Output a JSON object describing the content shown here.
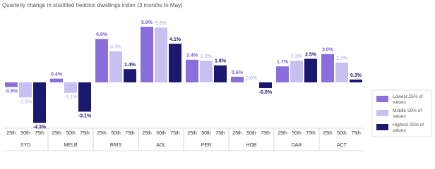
{
  "chart_data": {
    "type": "bar",
    "title": "Quarterly change in stratified hedonic dwellings index (3 months to May)",
    "categories": [
      "SYD",
      "MELB",
      "BRIS",
      "ADL",
      "PER",
      "HOB",
      "DAR",
      "ACT"
    ],
    "subcategories": [
      "25th",
      "50th",
      "75th"
    ],
    "series": [
      {
        "name": "Lowest 25% of values",
        "color": "#8a6fdc",
        "values": [
          -0.5,
          0.4,
          4.6,
          5.9,
          2.4,
          0.6,
          1.7,
          3.0
        ],
        "value_labels": [
          "-0.5%",
          "0.4%",
          "4.6%",
          "5.9%",
          "2.4%",
          "0.6%",
          "1.7%",
          "3.0%"
        ]
      },
      {
        "name": "Middle 50% of values",
        "color": "#c6c1f0",
        "values": [
          -1.6,
          -1.1,
          3.3,
          5.8,
          2.3,
          0.0,
          2.3,
          2.1
        ],
        "value_labels": [
          "-1.6%",
          "-1.1%",
          "3.3%",
          "5.8%",
          "2.3%",
          "0.0%",
          "2.3%",
          "2.1%"
        ]
      },
      {
        "name": "Highest 25% of values",
        "color": "#1d186f",
        "values": [
          -4.3,
          -3.1,
          1.4,
          4.1,
          1.8,
          -0.6,
          2.5,
          0.3
        ],
        "value_labels": [
          "-4.3%",
          "-3.1%",
          "1.4%",
          "4.1%",
          "1.8%",
          "-0.6%",
          "2.5%",
          "0.3%"
        ]
      }
    ]
  }
}
